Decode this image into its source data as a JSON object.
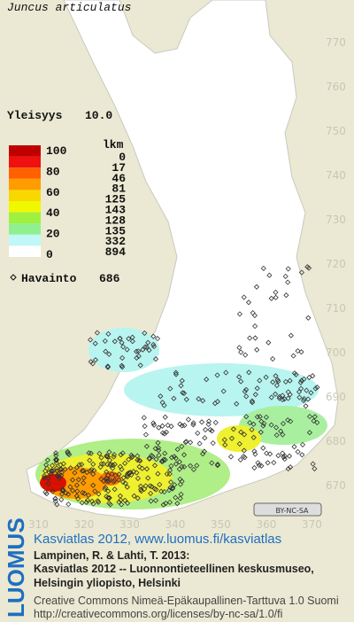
{
  "map": {
    "title": "Juncus articulatus",
    "frequency_label": "Yleisyys",
    "frequency_value": "10.0",
    "legend": {
      "count_header": "lkm",
      "scale_labels": [
        "100",
        "80",
        "60",
        "40",
        "20",
        "0"
      ],
      "counts": [
        "0",
        "17",
        "46",
        "81",
        "125",
        "143",
        "128",
        "135",
        "332",
        "894"
      ]
    },
    "observation_label": "Havainto",
    "observation_count": "686",
    "y_grid_labels": [
      "770",
      "760",
      "750",
      "740",
      "730",
      "720",
      "710",
      "700",
      "690",
      "680",
      "670"
    ],
    "x_grid_labels": [
      "310",
      "320",
      "330",
      "340",
      "350",
      "360",
      "370"
    ],
    "license_badge": "BY-NC-SA"
  },
  "footer": {
    "logo": "LUOMUS",
    "headline": "Kasviatlas 2012, www.luomus.fi/kasviatlas",
    "citation": [
      "Lampinen, R. & Lahti, T. 2013:",
      "Kasviatlas 2012 -- Luonnontieteellinen keskusmuseo,",
      "Helsingin yliopisto, Helsinki"
    ],
    "license": "Creative Commons Nimeä-Epäkaupallinen-Tarttuva 1.0 Suomi",
    "license_url": "http://creativecommons.org/licenses/by-nc-sa/1.0/fi"
  }
}
